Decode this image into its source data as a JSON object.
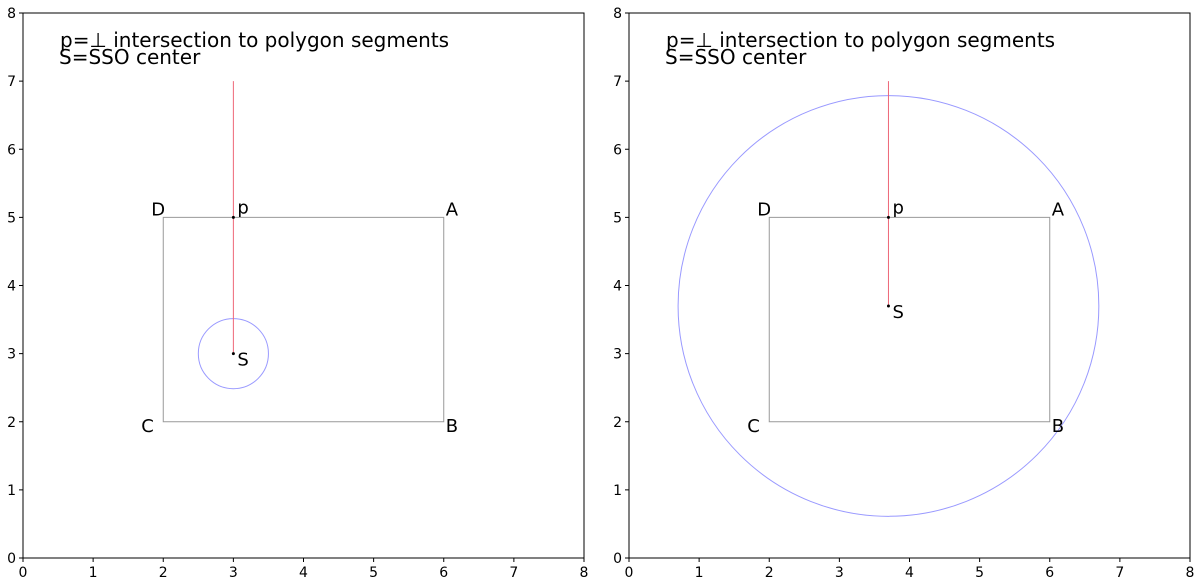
{
  "panels": [
    {
      "id": "left",
      "note_line1": "p=⊥ intersection to polygon segments",
      "note_line2": "S=SSO center",
      "xlim": [
        0,
        8
      ],
      "ylim": [
        0,
        8
      ],
      "ticks": [
        "0",
        "1",
        "2",
        "3",
        "4",
        "5",
        "6",
        "7",
        "8"
      ],
      "polygon": [
        {
          "label": "A",
          "x": 6,
          "y": 5
        },
        {
          "label": "B",
          "x": 6,
          "y": 2
        },
        {
          "label": "C",
          "x": 2,
          "y": 2
        },
        {
          "label": "D",
          "x": 2,
          "y": 5
        }
      ],
      "center": {
        "label": "S",
        "x": 3,
        "y": 3
      },
      "foot": {
        "label": "p",
        "x": 3,
        "y": 5
      },
      "ray_end": {
        "x": 3,
        "y": 7
      },
      "circle_radius": 0.5
    },
    {
      "id": "right",
      "note_line1": "p=⊥ intersection to polygon segments",
      "note_line2": "S=SSO center",
      "xlim": [
        0,
        8
      ],
      "ylim": [
        0,
        8
      ],
      "ticks": [
        "0",
        "1",
        "2",
        "3",
        "4",
        "5",
        "6",
        "7",
        "8"
      ],
      "polygon": [
        {
          "label": "A",
          "x": 6,
          "y": 5
        },
        {
          "label": "B",
          "x": 6,
          "y": 2
        },
        {
          "label": "C",
          "x": 2,
          "y": 2
        },
        {
          "label": "D",
          "x": 2,
          "y": 5
        }
      ],
      "center": {
        "label": "S",
        "x": 3.7,
        "y": 3.7
      },
      "foot": {
        "label": "p",
        "x": 3.7,
        "y": 5
      },
      "ray_end": {
        "x": 3.7,
        "y": 7
      },
      "circle_radius": 3.0
    }
  ],
  "colors": {
    "polygon": "#999999",
    "circle": "#9999ff",
    "ray": "#ee6677",
    "point": "#000000",
    "axis": "#000000"
  }
}
